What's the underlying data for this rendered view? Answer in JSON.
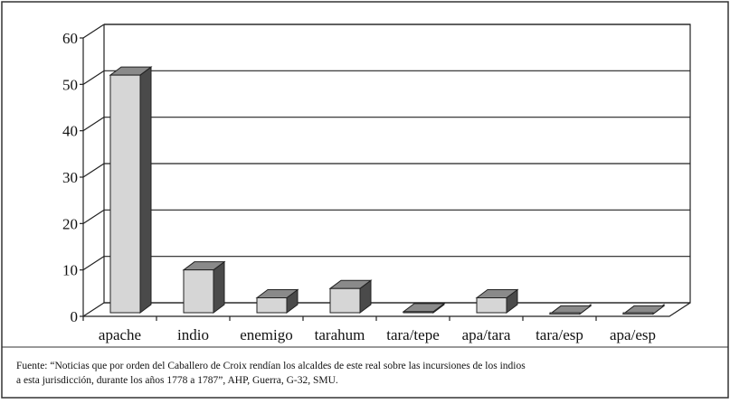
{
  "chart_data": {
    "type": "bar3d",
    "categories": [
      "apache",
      "indio",
      "enemigo",
      "tarahum",
      "tara/tepe",
      "apa/tara",
      "tara/esp",
      "apa/esp"
    ],
    "values": [
      52,
      10,
      4,
      6,
      1,
      4,
      0.5,
      0.5
    ],
    "color": "#d6d6d6",
    "ylim": [
      0,
      60
    ],
    "yticks": [
      0,
      10,
      20,
      30,
      40,
      50,
      60
    ],
    "grid": true,
    "note": [
      "Fuente: “Noticias que por orden del Caballero de Croix rendían los alcaldes de este real sobre las incursiones de los indios",
      "a esta jurisdicción, durante los años 1778 a 1787”, AHP, Guerra, G-32, SMU."
    ]
  }
}
